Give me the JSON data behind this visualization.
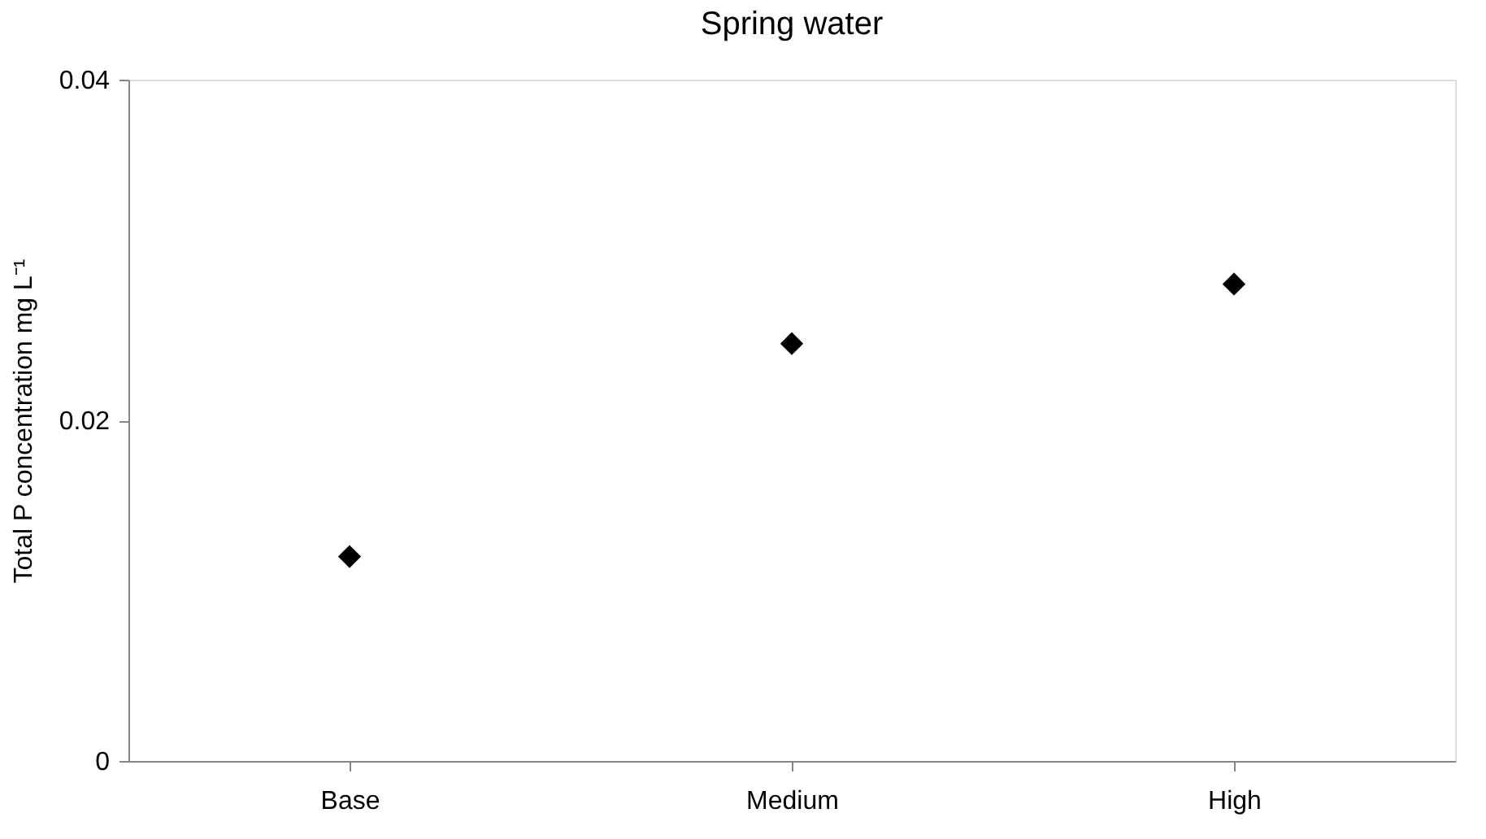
{
  "chart_data": {
    "type": "scatter",
    "title": "Spring water",
    "ylabel": "Total P concentration mg L⁻¹",
    "categories": [
      "Base",
      "Medium",
      "High"
    ],
    "series": [
      {
        "color": "#000000",
        "values": [
          0.012,
          0.0245,
          0.028
        ]
      }
    ],
    "ylim": [
      0,
      0.04
    ],
    "yticks": [
      0,
      0.02,
      0.04
    ],
    "marker": "diamond",
    "grid": false
  }
}
